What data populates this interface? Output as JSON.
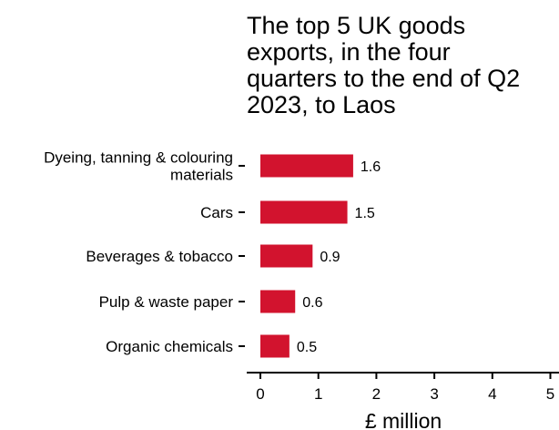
{
  "chart_data": {
    "type": "bar",
    "orientation": "horizontal",
    "title": "The top 5 UK goods\nexports, in the four\nquarters to the end of Q2\n2023, to Laos",
    "categories": [
      [
        "Dyeing, tanning & colouring",
        "materials"
      ],
      [
        "Cars"
      ],
      [
        "Beverages & tobacco"
      ],
      [
        "Pulp & waste paper"
      ],
      [
        "Organic chemicals"
      ]
    ],
    "values": [
      1.6,
      1.5,
      0.9,
      0.6,
      0.5
    ],
    "value_labels": [
      "1.6",
      "1.5",
      "0.9",
      "0.6",
      "0.5"
    ],
    "xlabel": "£ million",
    "ylabel": "",
    "xlim": [
      0,
      5
    ],
    "xticks": [
      "0",
      "1",
      "2",
      "3",
      "4",
      "5"
    ],
    "grid": false,
    "bar_color": "#d2132e"
  }
}
